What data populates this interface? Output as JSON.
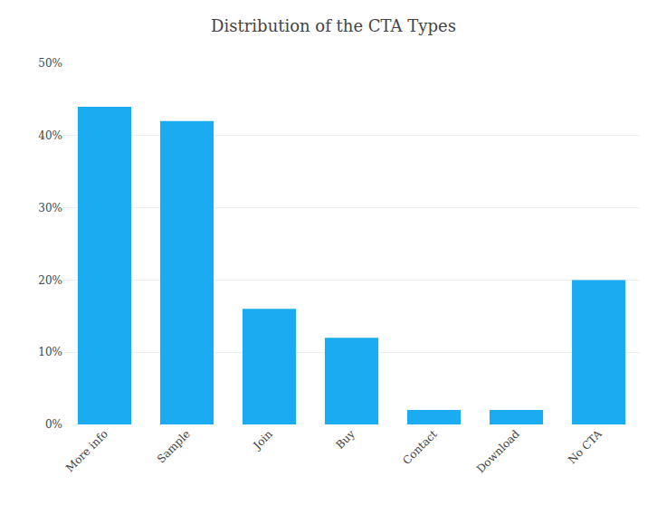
{
  "chart_data": {
    "type": "bar",
    "title": "Distribution of the CTA Types",
    "categories": [
      "More info",
      "Sample",
      "Join",
      "Buy",
      "Contact",
      "Download",
      "No CTA"
    ],
    "values": [
      44,
      42,
      16,
      12,
      2,
      2,
      20
    ],
    "color": "#1aabf0",
    "ylim": [
      0,
      50
    ],
    "yticks": [
      {
        "value": 0,
        "label": "0%"
      },
      {
        "value": 10,
        "label": "10%"
      },
      {
        "value": 20,
        "label": "20%"
      },
      {
        "value": 30,
        "label": "30%"
      },
      {
        "value": 40,
        "label": "40%"
      },
      {
        "value": 50,
        "label": "50%"
      }
    ],
    "grid": true
  }
}
